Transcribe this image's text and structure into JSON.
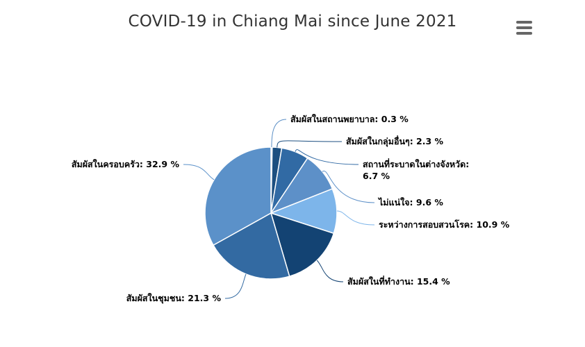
{
  "chart_data": {
    "type": "pie",
    "title": "COVID-19 in Chiang Mai since June 2021",
    "unit": "%",
    "series": [
      {
        "name": "",
        "points": [
          {
            "label": "สัมผัสในสถานพยาบาล",
            "value": 0.3,
            "color": "#5a8ec5"
          },
          {
            "label": "สัมผัสในกลุ่มอื่นๆ",
            "value": 2.3,
            "color": "#1c4f80"
          },
          {
            "label": "สถานที่ระบาดในต่างจังหวัด",
            "value": 6.7,
            "color": "#316aa4"
          },
          {
            "label": "ไม่แน่ใจ",
            "value": 9.6,
            "color": "#5d90c8"
          },
          {
            "label": "ระหว่างการสอบสวนโรค",
            "value": 10.9,
            "color": "#7db5ea"
          },
          {
            "label": "สัมผัสในที่ทำงาน",
            "value": 15.4,
            "color": "#134373"
          },
          {
            "label": "สัมผัสในชุมชน",
            "value": 21.3,
            "color": "#336aa2"
          },
          {
            "label": "สัมผัสในครอบครัว",
            "value": 32.9,
            "color": "#5b91c9"
          }
        ]
      }
    ]
  },
  "menu": {
    "icon": "hamburger-menu-icon"
  }
}
